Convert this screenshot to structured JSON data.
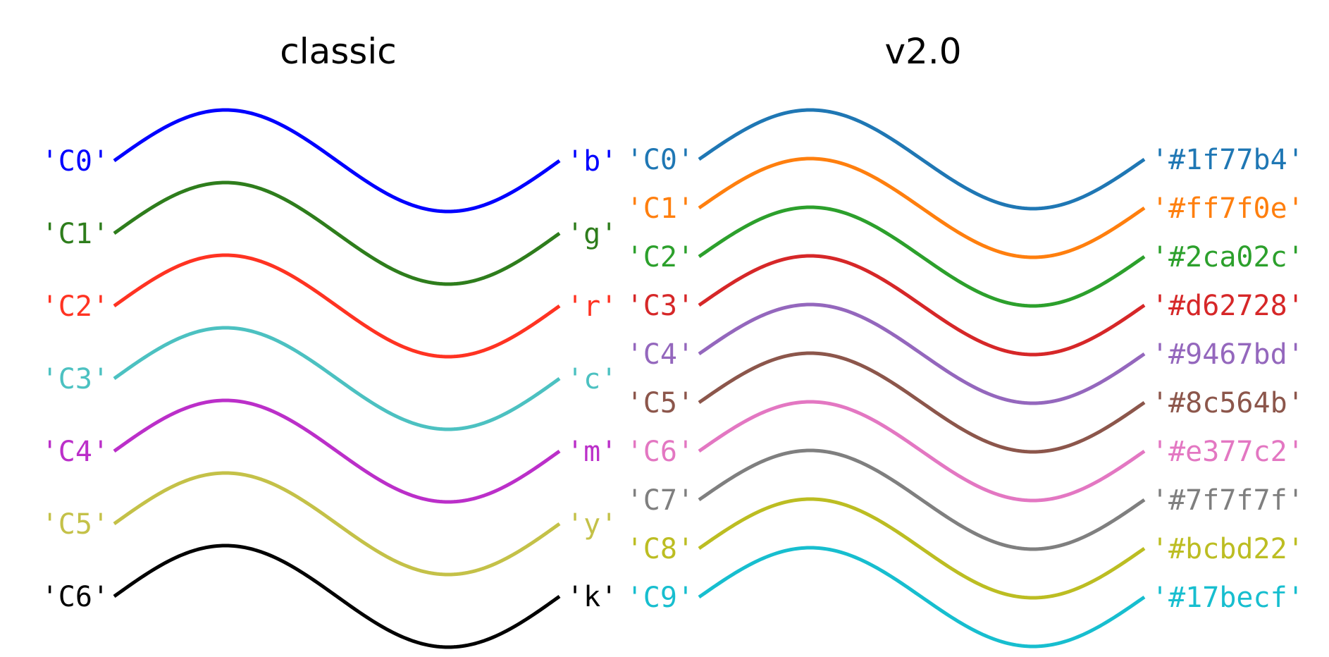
{
  "chart_data": [
    {
      "type": "line",
      "title": "classic",
      "series": [
        {
          "name": "'C0'",
          "alias": "'b'",
          "color": "#0000ff"
        },
        {
          "name": "'C1'",
          "alias": "'g'",
          "color": "#2e7d1c"
        },
        {
          "name": "'C2'",
          "alias": "'r'",
          "color": "#ff3322"
        },
        {
          "name": "'C3'",
          "alias": "'c'",
          "color": "#4cc1c1"
        },
        {
          "name": "'C4'",
          "alias": "'m'",
          "color": "#bb2fc9"
        },
        {
          "name": "'C5'",
          "alias": "'y'",
          "color": "#c4c148"
        },
        {
          "name": "'C6'",
          "alias": "'k'",
          "color": "#000000"
        }
      ]
    },
    {
      "type": "line",
      "title": "v2.0",
      "series": [
        {
          "name": "'C0'",
          "alias": "'#1f77b4'",
          "color": "#1f77b4"
        },
        {
          "name": "'C1'",
          "alias": "'#ff7f0e'",
          "color": "#ff7f0e"
        },
        {
          "name": "'C2'",
          "alias": "'#2ca02c'",
          "color": "#2ca02c"
        },
        {
          "name": "'C3'",
          "alias": "'#d62728'",
          "color": "#d62728"
        },
        {
          "name": "'C4'",
          "alias": "'#9467bd'",
          "color": "#9467bd"
        },
        {
          "name": "'C5'",
          "alias": "'#8c564b'",
          "color": "#8c564b"
        },
        {
          "name": "'C6'",
          "alias": "'#e377c2'",
          "color": "#e377c2"
        },
        {
          "name": "'C7'",
          "alias": "'#7f7f7f'",
          "color": "#7f7f7f"
        },
        {
          "name": "'C8'",
          "alias": "'#bcbd22'",
          "color": "#bcbd22"
        },
        {
          "name": "'C9'",
          "alias": "'#17becf'",
          "color": "#17becf"
        }
      ]
    }
  ]
}
